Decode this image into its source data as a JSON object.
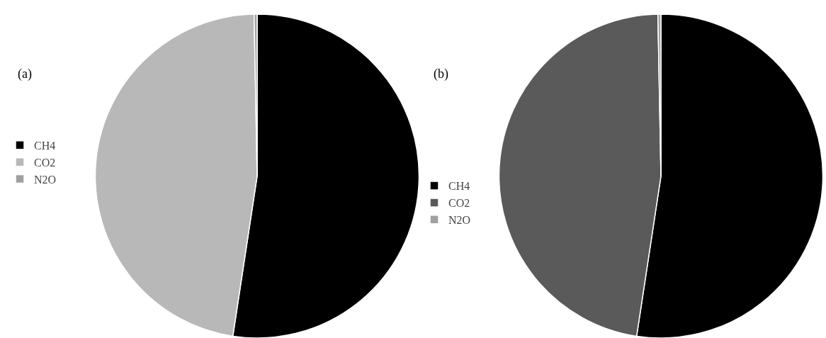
{
  "chart_data": [
    {
      "type": "pie",
      "title": "(a)",
      "categories": [
        "CH4",
        "CO2",
        "N2O"
      ],
      "values": [
        52.4,
        47.3,
        0.3
      ],
      "colors": [
        "#000000",
        "#b8b8b8",
        "#a0a0a0"
      ],
      "legend": "left"
    },
    {
      "type": "pie",
      "title": "(b)",
      "categories": [
        "CH4",
        "CO2",
        "N2O"
      ],
      "values": [
        52.4,
        47.3,
        0.3
      ],
      "colors": [
        "#000000",
        "#5a5a5a",
        "#a0a0a0"
      ],
      "legend": "left"
    }
  ]
}
